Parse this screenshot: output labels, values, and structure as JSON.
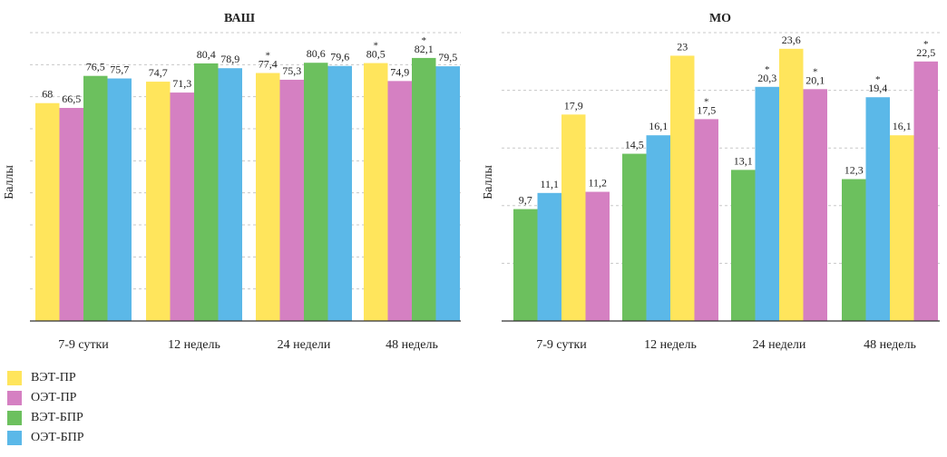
{
  "colors": {
    "yellow": "#FFE55C",
    "pink": "#D580C2",
    "green": "#6CC05E",
    "blue": "#5BB8E8",
    "grid": "#c8c8c8",
    "axis": "#333333"
  },
  "legend": [
    {
      "name": "ВЭТ-ПР",
      "color": "#FFE55C"
    },
    {
      "name": "ОЭТ-ПР",
      "color": "#D580C2"
    },
    {
      "name": "ВЭТ-БПР",
      "color": "#6CC05E"
    },
    {
      "name": "ОЭТ-БПР",
      "color": "#5BB8E8"
    }
  ],
  "chart_data": [
    {
      "type": "bar",
      "title": "ВАШ",
      "ylabel": "Баллы",
      "xlabel": "",
      "ylim": [
        0,
        90
      ],
      "grid": true,
      "categories": [
        "7-9 сутки",
        "12 недель",
        "24 недели",
        "48 недель"
      ],
      "groups": [
        [
          {
            "series": "ВЭТ-ПР",
            "value": 68,
            "label": "68",
            "star": false
          },
          {
            "series": "ОЭТ-ПР",
            "value": 66.5,
            "label": "66,5",
            "star": false
          },
          {
            "series": "ВЭТ-БПР",
            "value": 76.5,
            "label": "76,5",
            "star": false
          },
          {
            "series": "ОЭТ-БПР",
            "value": 75.7,
            "label": "75,7",
            "star": false
          }
        ],
        [
          {
            "series": "ВЭТ-ПР",
            "value": 74.7,
            "label": "74,7",
            "star": false
          },
          {
            "series": "ОЭТ-ПР",
            "value": 71.3,
            "label": "71,3",
            "star": false
          },
          {
            "series": "ВЭТ-БПР",
            "value": 80.4,
            "label": "80,4",
            "star": false
          },
          {
            "series": "ОЭТ-БПР",
            "value": 78.9,
            "label": "78,9",
            "star": false
          }
        ],
        [
          {
            "series": "ВЭТ-ПР",
            "value": 77.4,
            "label": "77,4",
            "star": true
          },
          {
            "series": "ОЭТ-ПР",
            "value": 75.3,
            "label": "75,3",
            "star": false
          },
          {
            "series": "ВЭТ-БПР",
            "value": 80.6,
            "label": "80,6",
            "star": false
          },
          {
            "series": "ОЭТ-БПР",
            "value": 79.6,
            "label": "79,6",
            "star": false
          }
        ],
        [
          {
            "series": "ВЭТ-ПР",
            "value": 80.5,
            "label": "80,5",
            "star": true
          },
          {
            "series": "ОЭТ-ПР",
            "value": 74.9,
            "label": "74,9",
            "star": false
          },
          {
            "series": "ВЭТ-БПР",
            "value": 82.1,
            "label": "82,1",
            "star": true
          },
          {
            "series": "ОЭТ-БПР",
            "value": 79.5,
            "label": "79,5",
            "star": false
          }
        ]
      ]
    },
    {
      "type": "bar",
      "title": "МО",
      "ylabel": "Баллы",
      "xlabel": "",
      "ylim": [
        0,
        25
      ],
      "grid": true,
      "categories": [
        "7-9 сутки",
        "12 недель",
        "24 недели",
        "48 недель"
      ],
      "groups": [
        [
          {
            "series": "ВЭТ-БПР",
            "value": 9.7,
            "label": "9,7",
            "star": false
          },
          {
            "series": "ОЭТ-БПР",
            "value": 11.1,
            "label": "11,1",
            "star": false
          },
          {
            "series": "ВЭТ-ПР",
            "value": 17.9,
            "label": "17,9",
            "star": false
          },
          {
            "series": "ОЭТ-ПР",
            "value": 11.2,
            "label": "11,2",
            "star": false
          }
        ],
        [
          {
            "series": "ВЭТ-БПР",
            "value": 14.5,
            "label": "14,5",
            "star": false
          },
          {
            "series": "ОЭТ-БПР",
            "value": 16.1,
            "label": "16,1",
            "star": false
          },
          {
            "series": "ВЭТ-ПР",
            "value": 23,
            "label": "23",
            "star": false
          },
          {
            "series": "ОЭТ-ПР",
            "value": 17.5,
            "label": "17,5",
            "star": true
          }
        ],
        [
          {
            "series": "ВЭТ-БПР",
            "value": 13.1,
            "label": "13,1",
            "star": false
          },
          {
            "series": "ОЭТ-БПР",
            "value": 20.3,
            "label": "20,3",
            "star": true
          },
          {
            "series": "ВЭТ-ПР",
            "value": 23.6,
            "label": "23,6",
            "star": false
          },
          {
            "series": "ОЭТ-ПР",
            "value": 20.1,
            "label": "20,1",
            "star": true
          }
        ],
        [
          {
            "series": "ВЭТ-БПР",
            "value": 12.3,
            "label": "12,3",
            "star": false
          },
          {
            "series": "ОЭТ-БПР",
            "value": 19.4,
            "label": "19,4",
            "star": true
          },
          {
            "series": "ВЭТ-ПР",
            "value": 16.1,
            "label": "16,1",
            "star": false
          },
          {
            "series": "ОЭТ-ПР",
            "value": 22.5,
            "label": "22,5",
            "star": true
          }
        ]
      ]
    }
  ]
}
